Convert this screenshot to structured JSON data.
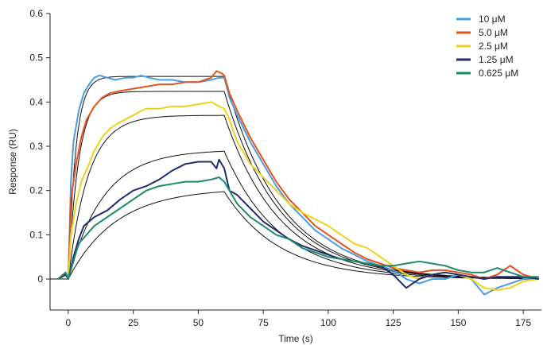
{
  "chart_data": {
    "type": "line",
    "title": "",
    "xlabel": "Time (s)",
    "ylabel": "Response (RU)",
    "xlim": [
      -7,
      182
    ],
    "ylim": [
      -0.07,
      0.6
    ],
    "x_ticks": [
      0,
      25,
      50,
      75,
      100,
      125,
      150,
      175
    ],
    "y_ticks": [
      0,
      0.1,
      0.2,
      0.3,
      0.4,
      0.5,
      0.6
    ],
    "x_tick_labels": [
      "0",
      "25",
      "50",
      "75",
      "100",
      "125",
      "150",
      "175"
    ],
    "y_tick_labels": [
      "0",
      "0.1",
      "0.2",
      "0.3",
      "0.4",
      "0.5",
      "0.6"
    ],
    "grid": false,
    "legend_position": "top-right",
    "series": [
      {
        "name": "10 μM",
        "color": "#4a9de0",
        "points": [
          [
            -4,
            0
          ],
          [
            -1,
            0.01
          ],
          [
            0,
            0
          ],
          [
            1,
            0.22
          ],
          [
            2,
            0.31
          ],
          [
            4,
            0.38
          ],
          [
            6,
            0.42
          ],
          [
            8,
            0.44
          ],
          [
            10,
            0.455
          ],
          [
            12,
            0.46
          ],
          [
            15,
            0.455
          ],
          [
            18,
            0.45
          ],
          [
            22,
            0.455
          ],
          [
            25,
            0.455
          ],
          [
            28,
            0.46
          ],
          [
            31,
            0.455
          ],
          [
            35,
            0.45
          ],
          [
            40,
            0.45
          ],
          [
            45,
            0.445
          ],
          [
            50,
            0.445
          ],
          [
            55,
            0.45
          ],
          [
            58,
            0.455
          ],
          [
            60,
            0.455
          ],
          [
            62,
            0.41
          ],
          [
            65,
            0.37
          ],
          [
            70,
            0.31
          ],
          [
            75,
            0.26
          ],
          [
            80,
            0.21
          ],
          [
            85,
            0.17
          ],
          [
            90,
            0.14
          ],
          [
            95,
            0.11
          ],
          [
            100,
            0.09
          ],
          [
            105,
            0.07
          ],
          [
            110,
            0.055
          ],
          [
            115,
            0.04
          ],
          [
            120,
            0.03
          ],
          [
            125,
            0.02
          ],
          [
            130,
            0
          ],
          [
            135,
            -0.01
          ],
          [
            140,
            0
          ],
          [
            145,
            0
          ],
          [
            150,
            0.01
          ],
          [
            155,
            0
          ],
          [
            160,
            -0.035
          ],
          [
            165,
            -0.02
          ],
          [
            170,
            -0.01
          ],
          [
            175,
            0
          ],
          [
            181,
            0
          ]
        ]
      },
      {
        "name": "5.0 μM",
        "color": "#e8511e",
        "points": [
          [
            -4,
            0
          ],
          [
            -1,
            0.01
          ],
          [
            0,
            0
          ],
          [
            1,
            0.18
          ],
          [
            3,
            0.26
          ],
          [
            5,
            0.32
          ],
          [
            7,
            0.36
          ],
          [
            10,
            0.39
          ],
          [
            13,
            0.41
          ],
          [
            16,
            0.42
          ],
          [
            20,
            0.425
          ],
          [
            25,
            0.43
          ],
          [
            30,
            0.435
          ],
          [
            35,
            0.44
          ],
          [
            40,
            0.44
          ],
          [
            45,
            0.445
          ],
          [
            50,
            0.445
          ],
          [
            55,
            0.455
          ],
          [
            57,
            0.47
          ],
          [
            59,
            0.465
          ],
          [
            60,
            0.46
          ],
          [
            62,
            0.42
          ],
          [
            65,
            0.38
          ],
          [
            70,
            0.32
          ],
          [
            75,
            0.27
          ],
          [
            80,
            0.22
          ],
          [
            85,
            0.18
          ],
          [
            90,
            0.15
          ],
          [
            95,
            0.12
          ],
          [
            100,
            0.1
          ],
          [
            105,
            0.08
          ],
          [
            110,
            0.06
          ],
          [
            115,
            0.045
          ],
          [
            120,
            0.035
          ],
          [
            125,
            0.025
          ],
          [
            130,
            0.02
          ],
          [
            135,
            0.015
          ],
          [
            140,
            0.02
          ],
          [
            145,
            0.02
          ],
          [
            150,
            0.015
          ],
          [
            155,
            0.01
          ],
          [
            160,
            0
          ],
          [
            165,
            0.01
          ],
          [
            170,
            0.03
          ],
          [
            175,
            0.01
          ],
          [
            181,
            0
          ]
        ]
      },
      {
        "name": "2.5 μM",
        "color": "#f0d21a",
        "points": [
          [
            -4,
            0
          ],
          [
            -1,
            0.01
          ],
          [
            0,
            0
          ],
          [
            1,
            0.1
          ],
          [
            3,
            0.17
          ],
          [
            5,
            0.22
          ],
          [
            8,
            0.26
          ],
          [
            10,
            0.29
          ],
          [
            13,
            0.32
          ],
          [
            16,
            0.34
          ],
          [
            20,
            0.355
          ],
          [
            25,
            0.37
          ],
          [
            28,
            0.38
          ],
          [
            30,
            0.385
          ],
          [
            35,
            0.385
          ],
          [
            40,
            0.39
          ],
          [
            45,
            0.39
          ],
          [
            50,
            0.395
          ],
          [
            55,
            0.4
          ],
          [
            58,
            0.39
          ],
          [
            60,
            0.385
          ],
          [
            62,
            0.36
          ],
          [
            65,
            0.31
          ],
          [
            70,
            0.26
          ],
          [
            75,
            0.23
          ],
          [
            80,
            0.2
          ],
          [
            85,
            0.17
          ],
          [
            90,
            0.15
          ],
          [
            95,
            0.135
          ],
          [
            100,
            0.12
          ],
          [
            105,
            0.1
          ],
          [
            110,
            0.08
          ],
          [
            115,
            0.07
          ],
          [
            120,
            0.05
          ],
          [
            125,
            0.03
          ],
          [
            130,
            0.01
          ],
          [
            135,
            0
          ],
          [
            140,
            0.01
          ],
          [
            145,
            0.015
          ],
          [
            150,
            0.01
          ],
          [
            155,
            0
          ],
          [
            160,
            -0.02
          ],
          [
            165,
            -0.025
          ],
          [
            170,
            -0.02
          ],
          [
            175,
            -0.005
          ],
          [
            181,
            0
          ]
        ]
      },
      {
        "name": "1.25 μM",
        "color": "#1f2d6e",
        "points": [
          [
            -4,
            0
          ],
          [
            -1,
            0.01
          ],
          [
            0,
            0
          ],
          [
            2,
            0.05
          ],
          [
            4,
            0.09
          ],
          [
            6,
            0.12
          ],
          [
            10,
            0.14
          ],
          [
            15,
            0.155
          ],
          [
            20,
            0.18
          ],
          [
            25,
            0.2
          ],
          [
            30,
            0.21
          ],
          [
            35,
            0.225
          ],
          [
            40,
            0.245
          ],
          [
            45,
            0.26
          ],
          [
            50,
            0.265
          ],
          [
            55,
            0.265
          ],
          [
            57,
            0.25
          ],
          [
            58,
            0.27
          ],
          [
            60,
            0.25
          ],
          [
            62,
            0.2
          ],
          [
            65,
            0.19
          ],
          [
            70,
            0.16
          ],
          [
            75,
            0.13
          ],
          [
            80,
            0.11
          ],
          [
            85,
            0.09
          ],
          [
            90,
            0.075
          ],
          [
            95,
            0.065
          ],
          [
            100,
            0.055
          ],
          [
            105,
            0.045
          ],
          [
            110,
            0.04
          ],
          [
            115,
            0.035
          ],
          [
            120,
            0.03
          ],
          [
            125,
            0.01
          ],
          [
            130,
            -0.02
          ],
          [
            135,
            0
          ],
          [
            140,
            0.01
          ],
          [
            145,
            0.015
          ],
          [
            150,
            0.01
          ],
          [
            155,
            0.005
          ],
          [
            160,
            0
          ],
          [
            165,
            0.005
          ],
          [
            170,
            0.005
          ],
          [
            175,
            0.005
          ],
          [
            181,
            0
          ]
        ]
      },
      {
        "name": "0.625 μM",
        "color": "#1a8a6a",
        "points": [
          [
            -4,
            0
          ],
          [
            -1,
            0.015
          ],
          [
            0,
            0
          ],
          [
            2,
            0.04
          ],
          [
            4,
            0.08
          ],
          [
            7,
            0.1
          ],
          [
            10,
            0.12
          ],
          [
            15,
            0.14
          ],
          [
            20,
            0.16
          ],
          [
            25,
            0.18
          ],
          [
            30,
            0.2
          ],
          [
            35,
            0.21
          ],
          [
            40,
            0.215
          ],
          [
            45,
            0.22
          ],
          [
            50,
            0.22
          ],
          [
            55,
            0.225
          ],
          [
            58,
            0.23
          ],
          [
            60,
            0.22
          ],
          [
            62,
            0.2
          ],
          [
            65,
            0.17
          ],
          [
            70,
            0.14
          ],
          [
            75,
            0.12
          ],
          [
            80,
            0.1
          ],
          [
            85,
            0.09
          ],
          [
            90,
            0.07
          ],
          [
            95,
            0.06
          ],
          [
            100,
            0.05
          ],
          [
            105,
            0.045
          ],
          [
            110,
            0.04
          ],
          [
            115,
            0.035
          ],
          [
            120,
            0.03
          ],
          [
            125,
            0.03
          ],
          [
            130,
            0.035
          ],
          [
            135,
            0.04
          ],
          [
            140,
            0.035
          ],
          [
            145,
            0.03
          ],
          [
            150,
            0.02
          ],
          [
            155,
            0.015
          ],
          [
            160,
            0.015
          ],
          [
            165,
            0.025
          ],
          [
            170,
            0.015
          ],
          [
            175,
            0.005
          ],
          [
            181,
            0.005
          ]
        ]
      }
    ],
    "fits": [
      {
        "plateau": 0.458,
        "kon": 0.35,
        "koff": 0.047
      },
      {
        "plateau": 0.424,
        "kon": 0.25,
        "koff": 0.047
      },
      {
        "plateau": 0.37,
        "kon": 0.13,
        "koff": 0.047
      },
      {
        "plateau": 0.292,
        "kon": 0.075,
        "koff": 0.047
      },
      {
        "plateau": 0.205,
        "kon": 0.055,
        "koff": 0.047
      }
    ],
    "fit_color": "#111111",
    "injection_end": 60
  }
}
